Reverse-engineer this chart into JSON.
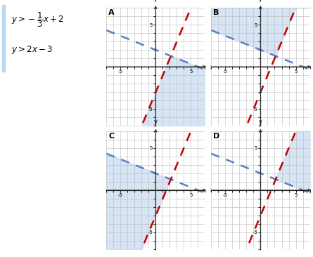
{
  "line1_slope": -0.3333333,
  "line1_intercept": 2,
  "line2_slope": 2,
  "line2_intercept": -3,
  "line1_color": "#5B7FC3",
  "line2_color": "#C00000",
  "shade_color": "#C5D9EE",
  "shade_alpha": 0.7,
  "xlim": [
    -7,
    7
  ],
  "ylim": [
    -7,
    7
  ],
  "grid_color": "#BBBBBB",
  "bg_color": "#FFFFFF",
  "graphs": [
    {
      "label": "A",
      "shade": "below_both"
    },
    {
      "label": "B",
      "shade": "above_both"
    },
    {
      "label": "C",
      "shade": "between_above2_below1"
    },
    {
      "label": "D",
      "shade": "between_above1_below2"
    }
  ]
}
